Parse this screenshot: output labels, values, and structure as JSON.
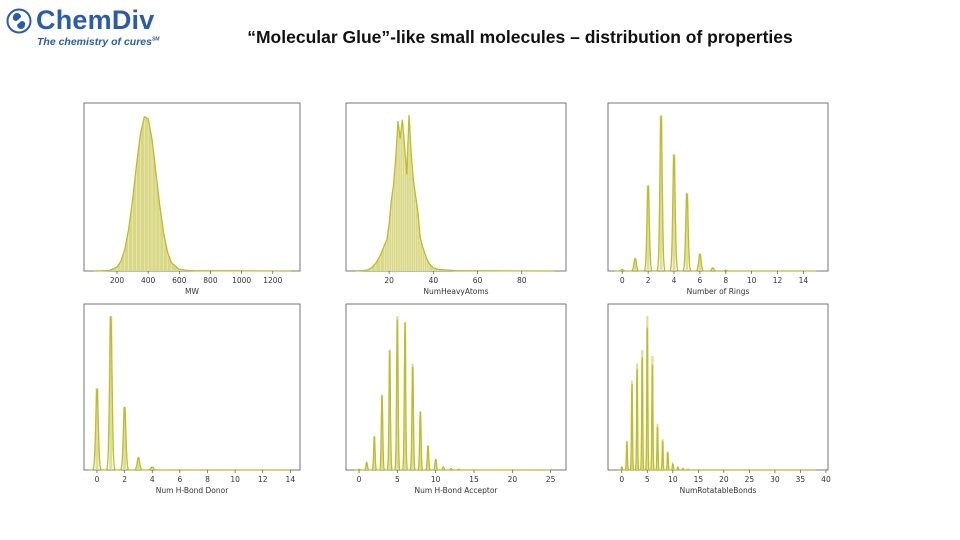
{
  "logo": {
    "name": "ChemDiv",
    "tagline": "The chemistry of cures",
    "mark": "SM",
    "color": "#2b5caa"
  },
  "slide_title": "“Molecular Glue”-like small molecules – distribution of properties",
  "colors": {
    "fill": "#d9d886",
    "line": "#bcbc2c",
    "axis": "#555555"
  },
  "chart_data": [
    {
      "type": "area",
      "xlabel": "MW",
      "xlim": [
        -12,
        1375
      ],
      "xticks": [
        200,
        400,
        600,
        800,
        1000,
        1200
      ],
      "grid": false,
      "y_scale": "relative density",
      "x": [
        50,
        100,
        150,
        200,
        225,
        250,
        275,
        300,
        325,
        350,
        375,
        400,
        425,
        450,
        475,
        500,
        525,
        550,
        600,
        650,
        700,
        800,
        1000,
        1320
      ],
      "y": [
        0,
        0.001,
        0.003,
        0.025,
        0.063,
        0.138,
        0.27,
        0.458,
        0.68,
        0.877,
        0.989,
        0.976,
        0.84,
        0.632,
        0.418,
        0.24,
        0.12,
        0.052,
        0.01,
        0.004,
        0.002,
        0.001,
        0.001,
        0
      ]
    },
    {
      "type": "area",
      "xlabel": "NumHeavyAtoms",
      "xlim": [
        0.5,
        100
      ],
      "xticks": [
        20,
        40,
        60,
        80
      ],
      "grid": false,
      "y_scale": "relative density",
      "x": [
        5,
        10,
        12,
        14,
        16,
        18,
        19,
        20,
        21,
        22,
        23,
        24,
        25,
        26,
        27,
        28,
        29,
        30,
        31,
        32,
        33,
        34,
        35,
        36,
        37,
        38,
        40,
        42,
        50,
        95
      ],
      "y": [
        0,
        0.005,
        0.02,
        0.05,
        0.1,
        0.17,
        0.2,
        0.3,
        0.45,
        0.55,
        0.72,
        0.96,
        0.85,
        0.97,
        0.8,
        0.62,
        1.0,
        0.75,
        0.58,
        0.48,
        0.38,
        0.22,
        0.16,
        0.12,
        0.08,
        0.05,
        0.02,
        0.01,
        0.002,
        0
      ]
    },
    {
      "type": "bar",
      "xlabel": "Number of Rings",
      "xlim": [
        -1.1,
        15.9
      ],
      "xticks": [
        0,
        2,
        4,
        6,
        8,
        10,
        12,
        14
      ],
      "grid": false,
      "y_scale": "relative density",
      "x_end": 15,
      "x": [
        0,
        1,
        2,
        3,
        4,
        5,
        6,
        7,
        8
      ],
      "y": [
        0.01,
        0.08,
        0.55,
        1.0,
        0.75,
        0.5,
        0.11,
        0.02,
        0.005
      ]
    },
    {
      "type": "bar",
      "xlabel": "Num H-Bond Donor",
      "xlim": [
        -0.94,
        14.7
      ],
      "xticks": [
        0,
        2,
        4,
        6,
        8,
        10,
        12,
        14
      ],
      "grid": false,
      "y_scale": "relative density",
      "x_end": 14,
      "x": [
        0,
        1,
        2,
        3,
        4
      ],
      "y": [
        0.53,
        1.0,
        0.41,
        0.08,
        0.02
      ]
    },
    {
      "type": "bar",
      "xlabel": "Num H-Bond Acceptor",
      "xlim": [
        -1.7,
        27.0
      ],
      "xticks": [
        0,
        5,
        10,
        15,
        20,
        25
      ],
      "grid": false,
      "y_scale": "relative density",
      "x_end": 25,
      "x": [
        0,
        1,
        2,
        3,
        4,
        5,
        6,
        7,
        8,
        9,
        10,
        11,
        12,
        13
      ],
      "y": [
        0.005,
        0.05,
        0.22,
        0.49,
        0.78,
        1.0,
        0.96,
        0.69,
        0.38,
        0.16,
        0.07,
        0.02,
        0.01,
        0.005
      ]
    },
    {
      "type": "bar",
      "xlabel": "NumRotatableBonds",
      "xlim": [
        -2.7,
        40.4
      ],
      "xticks": [
        0,
        5,
        10,
        15,
        20,
        25,
        30,
        35,
        40
      ],
      "grid": false,
      "y_scale": "relative density",
      "x_end": 38,
      "x": [
        0,
        1,
        2,
        3,
        4,
        5,
        6,
        7,
        8,
        9,
        10,
        11,
        12,
        13
      ],
      "y": [
        0.02,
        0.19,
        0.58,
        0.69,
        0.78,
        1.0,
        0.74,
        0.3,
        0.2,
        0.12,
        0.04,
        0.02,
        0.01,
        0.005
      ]
    }
  ]
}
